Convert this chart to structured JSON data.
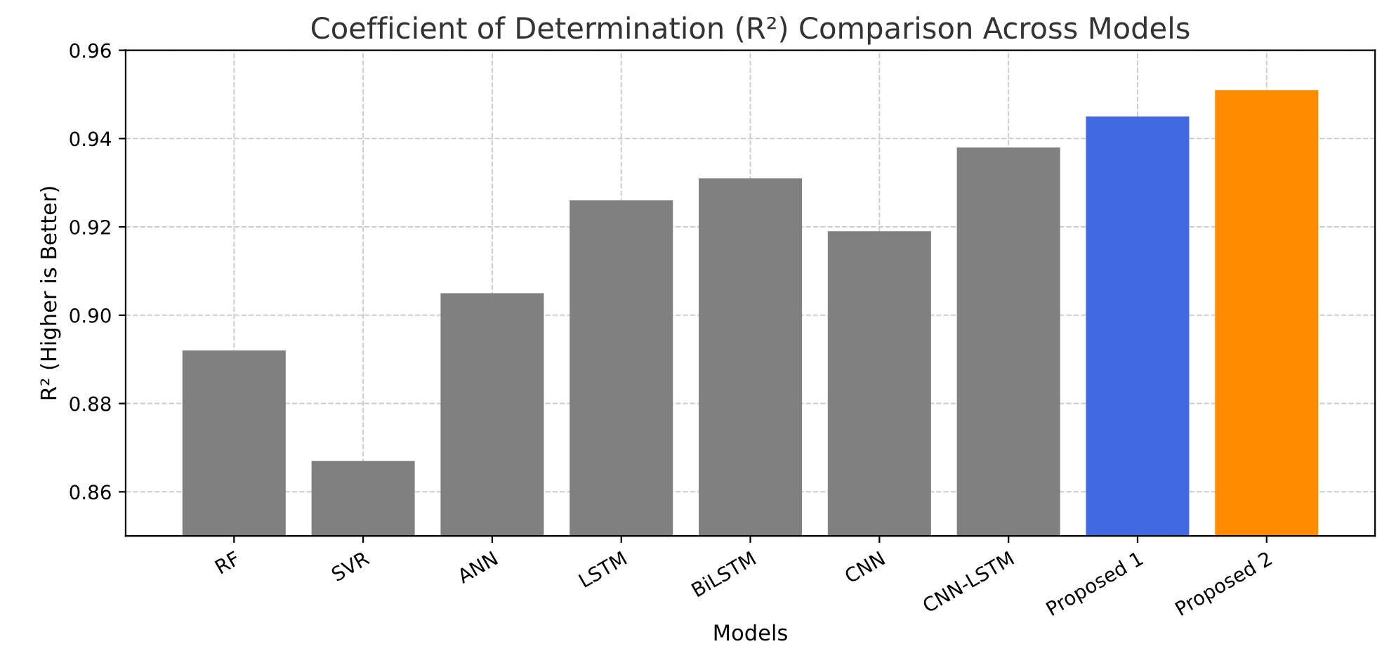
{
  "chart_data": {
    "type": "bar",
    "title": "Coefficient of Determination (R²) Comparison Across Models",
    "xlabel": "Models",
    "ylabel": "R² (Higher is Better)",
    "categories": [
      "RF",
      "SVR",
      "ANN",
      "LSTM",
      "BiLSTM",
      "CNN",
      "CNN-LSTM",
      "Proposed 1",
      "Proposed 2"
    ],
    "values": [
      0.892,
      0.867,
      0.905,
      0.926,
      0.931,
      0.919,
      0.938,
      0.945,
      0.951
    ],
    "colors": [
      "#808080",
      "#808080",
      "#808080",
      "#808080",
      "#808080",
      "#808080",
      "#808080",
      "#4169e1",
      "#ff8c00"
    ],
    "ylim": [
      0.85,
      0.96
    ],
    "yticks": [
      {
        "value": 0.86,
        "label": "0.86"
      },
      {
        "value": 0.88,
        "label": "0.88"
      },
      {
        "value": 0.9,
        "label": "0.90"
      },
      {
        "value": 0.92,
        "label": "0.92"
      },
      {
        "value": 0.94,
        "label": "0.94"
      },
      {
        "value": 0.96,
        "label": "0.96"
      }
    ],
    "grid": true
  }
}
